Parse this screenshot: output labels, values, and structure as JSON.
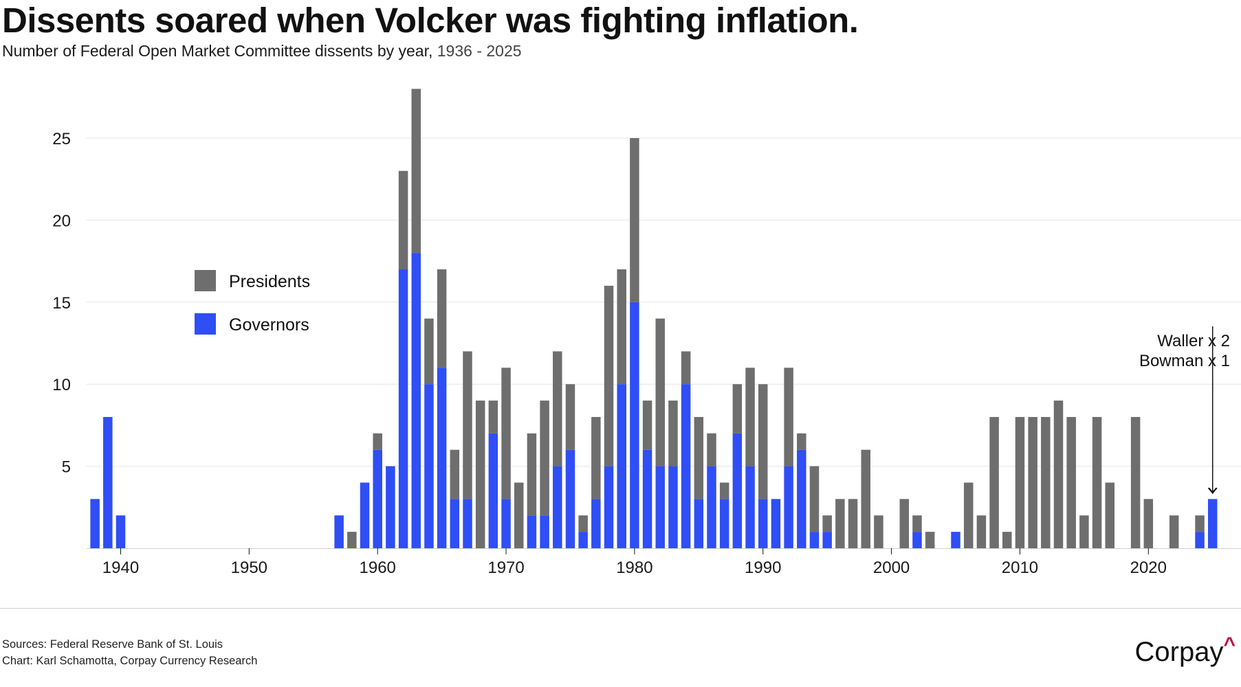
{
  "header": {
    "title": "Dissents soared when Volcker was fighting inflation.",
    "subtitle_main": "Number of Federal Open Market Committee dissents by year,",
    "subtitle_range": " 1936 - 2025"
  },
  "footer": {
    "source_line": "Sources: Federal Reserve Bank of St. Louis",
    "chart_line": "Chart: Karl Schamotta, Corpay Currency Research",
    "logo_text": "Corpay",
    "logo_caret": "^"
  },
  "chart_data": {
    "type": "bar",
    "stacked": true,
    "title": "Dissents soared when Volcker was fighting inflation.",
    "subtitle": "Number of Federal Open Market Committee dissents by year, 1936 - 2025",
    "xlabel": "",
    "ylabel": "",
    "xlim": [
      1936,
      2025
    ],
    "ylim": [
      0,
      28
    ],
    "x_ticks": [
      1940,
      1950,
      1960,
      1970,
      1980,
      1990,
      2000,
      2010,
      2020
    ],
    "y_ticks": [
      5,
      10,
      15,
      20,
      25
    ],
    "grid": true,
    "legend_position": "left",
    "colors": {
      "Presidents": "#6e6e6e",
      "Governors": "#2f4ef5"
    },
    "series": [
      {
        "name": "Governors",
        "color": "#2f4ef5",
        "values": [
          [
            1938,
            3
          ],
          [
            1939,
            8
          ],
          [
            1940,
            2
          ],
          [
            1957,
            2
          ],
          [
            1959,
            4
          ],
          [
            1960,
            6
          ],
          [
            1961,
            5
          ],
          [
            1962,
            17
          ],
          [
            1963,
            18
          ],
          [
            1964,
            10
          ],
          [
            1965,
            11
          ],
          [
            1966,
            3
          ],
          [
            1967,
            3
          ],
          [
            1969,
            7
          ],
          [
            1970,
            3
          ],
          [
            1972,
            2
          ],
          [
            1973,
            2
          ],
          [
            1974,
            5
          ],
          [
            1975,
            6
          ],
          [
            1976,
            1
          ],
          [
            1977,
            3
          ],
          [
            1978,
            5
          ],
          [
            1979,
            10
          ],
          [
            1980,
            15
          ],
          [
            1981,
            6
          ],
          [
            1982,
            5
          ],
          [
            1983,
            5
          ],
          [
            1984,
            10
          ],
          [
            1985,
            3
          ],
          [
            1986,
            5
          ],
          [
            1987,
            3
          ],
          [
            1988,
            7
          ],
          [
            1989,
            5
          ],
          [
            1990,
            3
          ],
          [
            1991,
            3
          ],
          [
            1992,
            5
          ],
          [
            1993,
            6
          ],
          [
            1994,
            1
          ],
          [
            1995,
            1
          ],
          [
            2002,
            1
          ],
          [
            2005,
            1
          ],
          [
            2024,
            1
          ],
          [
            2025,
            3
          ]
        ]
      },
      {
        "name": "Presidents",
        "color": "#6e6e6e",
        "values": [
          [
            1958,
            1
          ],
          [
            1960,
            1
          ],
          [
            1961,
            0
          ],
          [
            1962,
            6
          ],
          [
            1963,
            10
          ],
          [
            1964,
            4
          ],
          [
            1965,
            6
          ],
          [
            1966,
            3
          ],
          [
            1967,
            9
          ],
          [
            1968,
            9
          ],
          [
            1969,
            2
          ],
          [
            1970,
            8
          ],
          [
            1971,
            4
          ],
          [
            1972,
            5
          ],
          [
            1973,
            7
          ],
          [
            1974,
            7
          ],
          [
            1975,
            4
          ],
          [
            1976,
            1
          ],
          [
            1977,
            5
          ],
          [
            1978,
            11
          ],
          [
            1979,
            7
          ],
          [
            1980,
            10
          ],
          [
            1981,
            3
          ],
          [
            1982,
            9
          ],
          [
            1983,
            4
          ],
          [
            1984,
            2
          ],
          [
            1985,
            5
          ],
          [
            1986,
            2
          ],
          [
            1987,
            1
          ],
          [
            1988,
            3
          ],
          [
            1989,
            6
          ],
          [
            1990,
            7
          ],
          [
            1992,
            6
          ],
          [
            1993,
            1
          ],
          [
            1994,
            4
          ],
          [
            1995,
            1
          ],
          [
            1996,
            3
          ],
          [
            1997,
            3
          ],
          [
            1998,
            6
          ],
          [
            1999,
            2
          ],
          [
            2001,
            3
          ],
          [
            2002,
            1
          ],
          [
            2003,
            1
          ],
          [
            2006,
            4
          ],
          [
            2007,
            2
          ],
          [
            2008,
            8
          ],
          [
            2009,
            1
          ],
          [
            2010,
            8
          ],
          [
            2011,
            8
          ],
          [
            2012,
            8
          ],
          [
            2013,
            9
          ],
          [
            2014,
            8
          ],
          [
            2015,
            2
          ],
          [
            2016,
            8
          ],
          [
            2017,
            4
          ],
          [
            2019,
            8
          ],
          [
            2020,
            3
          ],
          [
            2022,
            2
          ],
          [
            2024,
            1
          ]
        ]
      }
    ],
    "annotations": [
      {
        "year": 2025,
        "lines": [
          "Waller x 2",
          "Bowman x 1"
        ]
      }
    ]
  }
}
